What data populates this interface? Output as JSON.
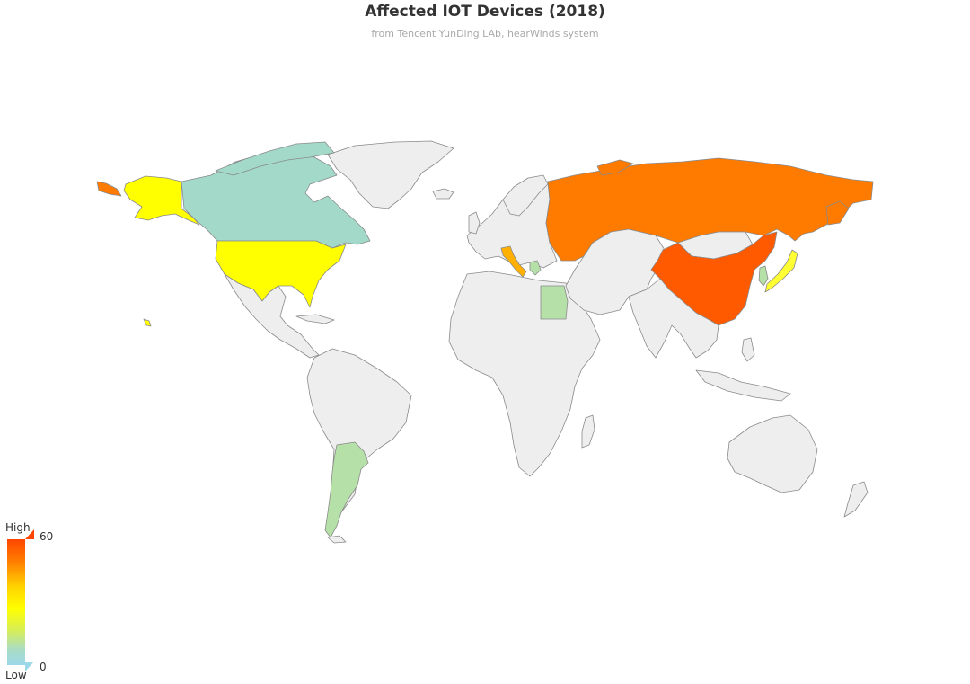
{
  "title": "Affected IOT Devices (2018)",
  "subtitle": "from Tencent YunDing LAb, hearWinds system",
  "legend": {
    "high_label": "High",
    "low_label": "Low",
    "max_value": "60",
    "min_value": "0",
    "color_stops": [
      "#ff4500",
      "#ff7f00",
      "#ffff00",
      "#d8ef55",
      "#9dd7ea"
    ]
  },
  "colors": {
    "no_data": "#eeeeee",
    "border": "#8a8a8a"
  },
  "regions_with_data": [
    {
      "name": "China",
      "color": "#ff5a00"
    },
    {
      "name": "Russia",
      "color": "#ff7b00"
    },
    {
      "name": "United States",
      "color": "#ffff00"
    },
    {
      "name": "Japan",
      "color": "#ffff33"
    },
    {
      "name": "Italy",
      "color": "#ffb000"
    },
    {
      "name": "Canada",
      "color": "#a3d9c9"
    },
    {
      "name": "Argentina",
      "color": "#b5e0a7"
    },
    {
      "name": "Egypt",
      "color": "#b5e0a7"
    },
    {
      "name": "South Korea",
      "color": "#b5e0a7"
    },
    {
      "name": "Greece",
      "color": "#b5e0a7"
    }
  ]
}
